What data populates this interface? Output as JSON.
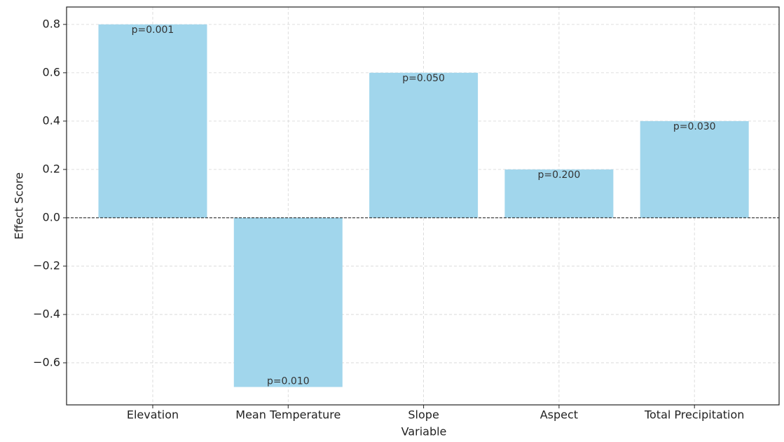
{
  "chart_data": {
    "type": "bar",
    "x_label": "Variable",
    "y_label": "Effect Score",
    "categories": [
      "Elevation",
      "Mean Temperature",
      "Slope",
      "Aspect",
      "Total Precipitation"
    ],
    "values": [
      0.8,
      -0.7,
      0.6,
      0.2,
      0.4
    ],
    "annotations": [
      "p=0.001",
      "p=0.010",
      "p=0.050",
      "p=0.200",
      "p=0.030"
    ],
    "color": "#a1d6ec",
    "reference_line": 0,
    "ylim": [
      -0.774,
      0.872
    ],
    "yticks": [
      {
        "value": -0.6,
        "label": "−0.6"
      },
      {
        "value": -0.4,
        "label": "−0.4"
      },
      {
        "value": -0.2,
        "label": "−0.2"
      },
      {
        "value": 0,
        "label": "0.0"
      },
      0.2,
      0.4,
      0.6,
      0.8
    ],
    "grid": true
  }
}
